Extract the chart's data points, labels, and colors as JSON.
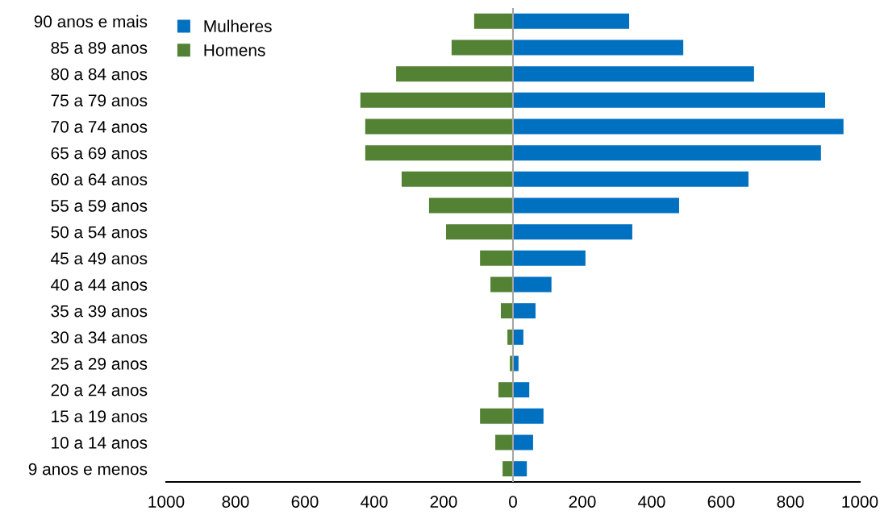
{
  "chart_data": {
    "type": "bar",
    "orientation": "horizontal",
    "legend": "top left",
    "grid": false,
    "stacked": true,
    "ref_lines": [
      {
        "axis": "x",
        "value": 0,
        "color": "#a6a6a6"
      }
    ],
    "categories": [
      "90 anos e mais",
      "85 a 89 anos",
      "80 a 84 anos",
      "75 a 79 anos",
      "70 a 74 anos",
      "65 a 69 anos",
      "60 a 64 anos",
      "55 a 59 anos",
      "50 a 54 anos",
      "45 a 49 anos",
      "40 a 44 anos",
      "35 a 39 anos",
      "30 a 34 anos",
      "25 a 29 anos",
      "20 a 24 anos",
      "15 a 19 anos",
      "10 a 14 anos",
      "9 anos e menos"
    ],
    "series": [
      {
        "name": "Mulheres",
        "color": "#0070c0",
        "values": [
          335,
          491,
          695,
          900,
          953,
          888,
          679,
          479,
          344,
          209,
          111,
          65,
          30,
          16,
          47,
          88,
          58,
          40
        ]
      },
      {
        "name": "Homens",
        "color": "#548235",
        "values": [
          -112,
          -177,
          -337,
          -440,
          -426,
          -426,
          -321,
          -242,
          -193,
          -95,
          -65,
          -35,
          -16,
          -9,
          -42,
          -95,
          -51,
          -30
        ]
      }
    ],
    "xlim": [
      -1000,
      1000
    ],
    "xticks": [
      {
        "value": -1000,
        "label": "1000"
      },
      {
        "value": -800,
        "label": "800"
      },
      {
        "value": -600,
        "label": "600"
      },
      {
        "value": -400,
        "label": "400"
      },
      {
        "value": -200,
        "label": "200"
      },
      0,
      200,
      400,
      600,
      800,
      1000
    ]
  }
}
